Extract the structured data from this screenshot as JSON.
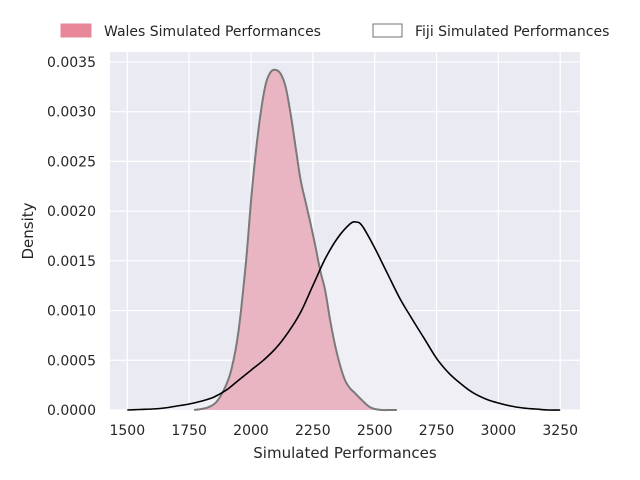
{
  "chart_data": {
    "type": "area",
    "title": "",
    "xlabel": "Simulated Performances",
    "ylabel": "Density",
    "xlim": [
      1430,
      3330
    ],
    "ylim": [
      0,
      0.0036
    ],
    "xticks": [
      1500,
      1750,
      2000,
      2250,
      2500,
      2750,
      3000,
      3250
    ],
    "xtick_labels": [
      "1500",
      "1750",
      "2000",
      "2250",
      "2500",
      "2750",
      "3000",
      "3250"
    ],
    "yticks": [
      0,
      0.0005,
      0.001,
      0.0015,
      0.002,
      0.0025,
      0.003,
      0.0035
    ],
    "ytick_labels": [
      "0.0000",
      "0.0005",
      "0.0010",
      "0.0015",
      "0.0020",
      "0.0025",
      "0.0030",
      "0.0035"
    ],
    "grid": true,
    "legend_position": "top (above plot)",
    "series": [
      {
        "name": "Wales Simulated Performances",
        "style": "filled",
        "color": "#e8869a",
        "fill": "#e8b0be",
        "line_color": "#7a7a7a",
        "x": [
          1770,
          1800,
          1830,
          1860,
          1890,
          1920,
          1950,
          1980,
          2000,
          2020,
          2040,
          2060,
          2080,
          2100,
          2120,
          2140,
          2160,
          2180,
          2200,
          2220,
          2240,
          2260,
          2280,
          2300,
          2320,
          2340,
          2360,
          2380,
          2400,
          2420,
          2440,
          2460,
          2480,
          2500,
          2530,
          2560,
          2590
        ],
        "y": [
          0.0,
          1e-05,
          3e-05,
          8e-05,
          0.0002,
          0.0004,
          0.0008,
          0.0015,
          0.0021,
          0.0026,
          0.003,
          0.00328,
          0.0034,
          0.00342,
          0.00338,
          0.00325,
          0.00298,
          0.00265,
          0.00232,
          0.0021,
          0.00188,
          0.00165,
          0.0014,
          0.0012,
          0.0009,
          0.00065,
          0.00045,
          0.0003,
          0.00022,
          0.00017,
          0.00012,
          7e-05,
          3e-05,
          1e-05,
          0.0,
          0.0,
          0.0
        ]
      },
      {
        "name": "Fiji Simulated Performances",
        "style": "line",
        "color": "#000000",
        "fill": "#f0eff6",
        "x": [
          1500,
          1550,
          1600,
          1650,
          1700,
          1750,
          1800,
          1850,
          1900,
          1950,
          2000,
          2050,
          2100,
          2150,
          2200,
          2250,
          2300,
          2350,
          2400,
          2425,
          2450,
          2500,
          2550,
          2600,
          2650,
          2700,
          2750,
          2800,
          2850,
          2900,
          2950,
          3000,
          3050,
          3100,
          3150,
          3200,
          3250
        ],
        "y": [
          0.0,
          5e-06,
          1e-05,
          2e-05,
          4e-05,
          6e-05,
          9e-05,
          0.00013,
          0.0002,
          0.0003,
          0.0004,
          0.0005,
          0.00062,
          0.00078,
          0.00098,
          0.00125,
          0.00152,
          0.00173,
          0.00187,
          0.00189,
          0.00185,
          0.00163,
          0.00138,
          0.00113,
          0.00092,
          0.00072,
          0.00052,
          0.00037,
          0.00026,
          0.00017,
          0.00011,
          7e-05,
          4e-05,
          2e-05,
          1e-05,
          0.0,
          0.0
        ]
      }
    ]
  }
}
